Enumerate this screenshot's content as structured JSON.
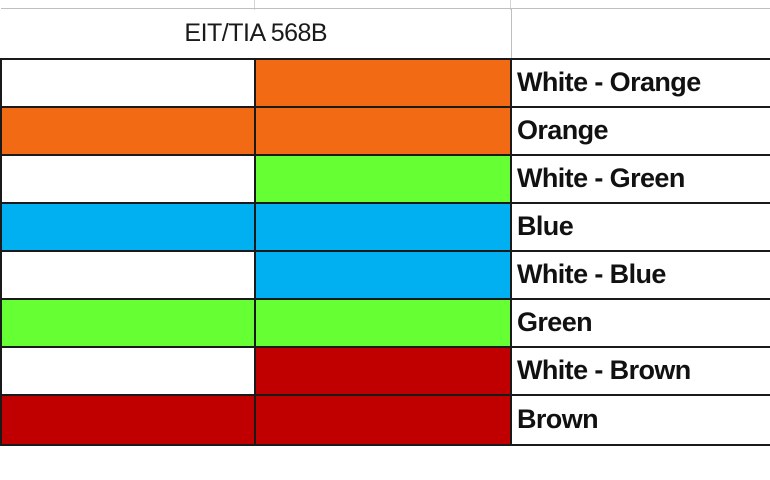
{
  "sheet": {
    "title": "EIT/TIA 568B",
    "colors": {
      "white": "#ffffff",
      "orange": "#f26a14",
      "green": "#66ff33",
      "blue": "#00b0f0",
      "brown": "#c00000"
    },
    "rows": [
      {
        "left": "#ffffff",
        "right": "#f26a14",
        "label": "White - Orange"
      },
      {
        "left": "#f26a14",
        "right": "#f26a14",
        "label": "Orange"
      },
      {
        "left": "#ffffff",
        "right": "#66ff33",
        "label": "White - Green"
      },
      {
        "left": "#00b0f0",
        "right": "#00b0f0",
        "label": "Blue"
      },
      {
        "left": "#ffffff",
        "right": "#00b0f0",
        "label": "White - Blue"
      },
      {
        "left": "#66ff33",
        "right": "#66ff33",
        "label": "Green"
      },
      {
        "left": "#ffffff",
        "right": "#c00000",
        "label": "White - Brown"
      },
      {
        "left": "#c00000",
        "right": "#c00000",
        "label": "Brown"
      }
    ]
  }
}
